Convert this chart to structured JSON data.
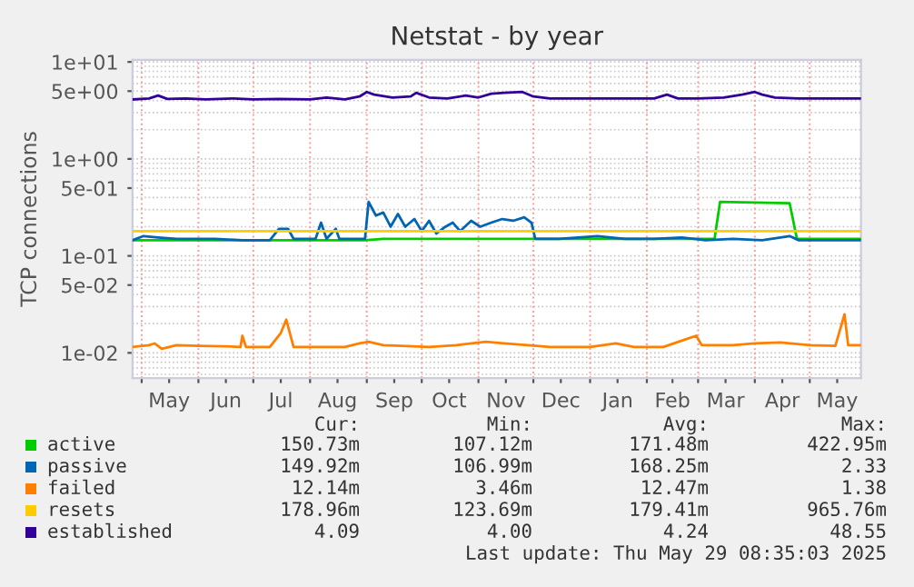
{
  "chart_data": {
    "type": "line",
    "title": "Netstat - by year",
    "ylabel": "TCP connections",
    "log": "y",
    "grid": true,
    "legend": "bottom",
    "line_style": "solid",
    "marker": "none",
    "xlim": [
      "2024-04-26",
      "2025-05-29"
    ],
    "xticks": [
      {
        "value": "2024-05-01",
        "label": null
      },
      {
        "value": "2024-05-16",
        "label": "May"
      },
      {
        "value": "2024-06-01",
        "label": null
      },
      {
        "value": "2024-06-16",
        "label": "Jun"
      },
      {
        "value": "2024-07-01",
        "label": null
      },
      {
        "value": "2024-07-16",
        "label": "Jul"
      },
      {
        "value": "2024-08-01",
        "label": null
      },
      {
        "value": "2024-08-16",
        "label": "Aug"
      },
      {
        "value": "2024-09-01",
        "label": null
      },
      {
        "value": "2024-09-16",
        "label": "Sep"
      },
      {
        "value": "2024-10-01",
        "label": null
      },
      {
        "value": "2024-10-16",
        "label": "Oct"
      },
      {
        "value": "2024-11-01",
        "label": null
      },
      {
        "value": "2024-11-16",
        "label": "Nov"
      },
      {
        "value": "2024-12-01",
        "label": null
      },
      {
        "value": "2024-12-16",
        "label": "Dec"
      },
      {
        "value": "2025-01-01",
        "label": null
      },
      {
        "value": "2025-01-16",
        "label": "Jan"
      },
      {
        "value": "2025-02-01",
        "label": null
      },
      {
        "value": "2025-02-15",
        "label": "Feb"
      },
      {
        "value": "2025-03-01",
        "label": null
      },
      {
        "value": "2025-03-16",
        "label": "Mar"
      },
      {
        "value": "2025-04-01",
        "label": null
      },
      {
        "value": "2025-04-16",
        "label": "Apr"
      },
      {
        "value": "2025-05-01",
        "label": null
      },
      {
        "value": "2025-05-16",
        "label": "May"
      }
    ],
    "ylim": [
      0.0055,
      10.5
    ],
    "yticks": [
      {
        "value": 10,
        "label": "1e+01"
      },
      {
        "value": 5,
        "label": "5e+00"
      },
      {
        "value": 1,
        "label": "1e+00"
      },
      {
        "value": 0.5,
        "label": "5e-01"
      },
      {
        "value": 0.1,
        "label": "1e-01"
      },
      {
        "value": 0.05,
        "label": "5e-02"
      },
      {
        "value": 0.01,
        "label": "1e-02"
      }
    ],
    "series": [
      {
        "name": "active",
        "color": "#00cc00",
        "x": [
          "2024-04-26",
          "2024-08-31",
          "2024-09-10",
          "2024-12-31",
          "2025-03-10",
          "2025-03-13",
          "2025-04-01",
          "2025-04-20",
          "2025-04-24",
          "2025-05-29"
        ],
        "values": [
          0.145,
          0.145,
          0.15,
          0.15,
          0.15,
          0.36,
          0.355,
          0.35,
          0.15,
          0.15
        ]
      },
      {
        "name": "passive",
        "color": "#0066b3",
        "x": [
          "2024-04-26",
          "2024-05-02",
          "2024-05-10",
          "2024-05-20",
          "2024-06-10",
          "2024-06-25",
          "2024-07-10",
          "2024-07-15",
          "2024-07-20",
          "2024-07-23",
          "2024-08-04",
          "2024-08-07",
          "2024-08-10",
          "2024-08-15",
          "2024-08-17",
          "2024-08-31",
          "2024-09-02",
          "2024-09-06",
          "2024-09-10",
          "2024-09-14",
          "2024-09-18",
          "2024-09-22",
          "2024-09-27",
          "2024-10-01",
          "2024-10-05",
          "2024-10-09",
          "2024-10-14",
          "2024-10-18",
          "2024-10-22",
          "2024-10-28",
          "2024-11-02",
          "2024-11-08",
          "2024-11-14",
          "2024-11-20",
          "2024-11-26",
          "2024-11-30",
          "2024-12-02",
          "2024-12-15",
          "2025-01-05",
          "2025-01-20",
          "2025-02-05",
          "2025-02-20",
          "2025-03-05",
          "2025-03-20",
          "2025-04-05",
          "2025-04-20",
          "2025-04-25",
          "2025-05-15",
          "2025-05-29"
        ],
        "values": [
          0.145,
          0.16,
          0.155,
          0.15,
          0.15,
          0.145,
          0.145,
          0.19,
          0.19,
          0.15,
          0.15,
          0.22,
          0.15,
          0.19,
          0.15,
          0.15,
          0.36,
          0.26,
          0.28,
          0.2,
          0.27,
          0.2,
          0.24,
          0.18,
          0.23,
          0.17,
          0.2,
          0.22,
          0.18,
          0.23,
          0.2,
          0.22,
          0.24,
          0.23,
          0.25,
          0.22,
          0.15,
          0.15,
          0.16,
          0.15,
          0.15,
          0.155,
          0.145,
          0.15,
          0.145,
          0.16,
          0.145,
          0.145,
          0.145
        ]
      },
      {
        "name": "failed",
        "color": "#ff8000",
        "x": [
          "2024-04-26",
          "2024-05-05",
          "2024-05-08",
          "2024-05-12",
          "2024-05-20",
          "2024-06-01",
          "2024-06-15",
          "2024-06-24",
          "2024-06-25",
          "2024-06-27",
          "2024-07-10",
          "2024-07-16",
          "2024-07-19",
          "2024-07-23",
          "2024-08-10",
          "2024-08-20",
          "2024-08-28",
          "2024-09-02",
          "2024-09-10",
          "2024-09-20",
          "2024-10-05",
          "2024-10-20",
          "2024-11-05",
          "2024-11-15",
          "2024-11-28",
          "2024-12-10",
          "2025-01-01",
          "2025-01-15",
          "2025-01-25",
          "2025-02-10",
          "2025-02-28",
          "2025-03-03",
          "2025-03-20",
          "2025-04-01",
          "2025-04-15",
          "2025-05-01",
          "2025-05-15",
          "2025-05-20",
          "2025-05-22",
          "2025-05-29"
        ],
        "values": [
          0.0115,
          0.012,
          0.0125,
          0.011,
          0.012,
          0.0118,
          0.0117,
          0.0115,
          0.015,
          0.0115,
          0.0115,
          0.016,
          0.022,
          0.0115,
          0.0115,
          0.0115,
          0.0125,
          0.013,
          0.012,
          0.0118,
          0.0115,
          0.012,
          0.013,
          0.0125,
          0.012,
          0.0115,
          0.0115,
          0.0125,
          0.0115,
          0.0115,
          0.015,
          0.012,
          0.012,
          0.0125,
          0.0128,
          0.012,
          0.0118,
          0.025,
          0.012,
          0.012
        ]
      },
      {
        "name": "resets",
        "color": "#ffcc00",
        "x": [
          "2024-04-26",
          "2025-05-29"
        ],
        "values": [
          0.18,
          0.18
        ]
      },
      {
        "name": "established",
        "color": "#330099",
        "x": [
          "2024-04-26",
          "2024-05-05",
          "2024-05-10",
          "2024-05-15",
          "2024-05-25",
          "2024-06-05",
          "2024-06-20",
          "2024-07-01",
          "2024-07-15",
          "2024-08-01",
          "2024-08-10",
          "2024-08-20",
          "2024-08-28",
          "2024-09-01",
          "2024-09-05",
          "2024-09-15",
          "2024-09-25",
          "2024-09-28",
          "2024-10-05",
          "2024-10-15",
          "2024-10-25",
          "2024-11-01",
          "2024-11-08",
          "2024-11-15",
          "2024-11-25",
          "2024-12-01",
          "2024-12-10",
          "2024-12-25",
          "2025-01-10",
          "2025-01-25",
          "2025-02-05",
          "2025-02-12",
          "2025-02-18",
          "2025-03-01",
          "2025-03-15",
          "2025-03-25",
          "2025-04-01",
          "2025-04-05",
          "2025-04-12",
          "2025-04-25",
          "2025-05-10",
          "2025-05-29"
        ],
        "values": [
          4.1,
          4.2,
          4.5,
          4.15,
          4.2,
          4.1,
          4.2,
          4.1,
          4.15,
          4.1,
          4.3,
          4.1,
          4.4,
          4.9,
          4.6,
          4.3,
          4.4,
          4.8,
          4.3,
          4.2,
          4.5,
          4.3,
          4.7,
          4.8,
          4.9,
          4.4,
          4.2,
          4.2,
          4.2,
          4.2,
          4.2,
          4.6,
          4.2,
          4.2,
          4.3,
          4.6,
          4.9,
          4.6,
          4.3,
          4.2,
          4.2,
          4.2
        ]
      }
    ],
    "annotations": [
      "Cur:",
      "Min:",
      "Avg:",
      "Max:",
      "150.73m",
      "107.12m",
      "171.48m",
      "422.95m",
      "149.92m",
      "106.99m",
      "168.25m",
      "2.33",
      "12.14m",
      "3.46m",
      "12.47m",
      "1.38",
      "178.96m",
      "123.69m",
      "179.41m",
      "965.76m",
      "4.09",
      "4.00",
      "4.24",
      "48.55",
      "Last update: Thu May 29 08:35:03 2025"
    ]
  }
}
